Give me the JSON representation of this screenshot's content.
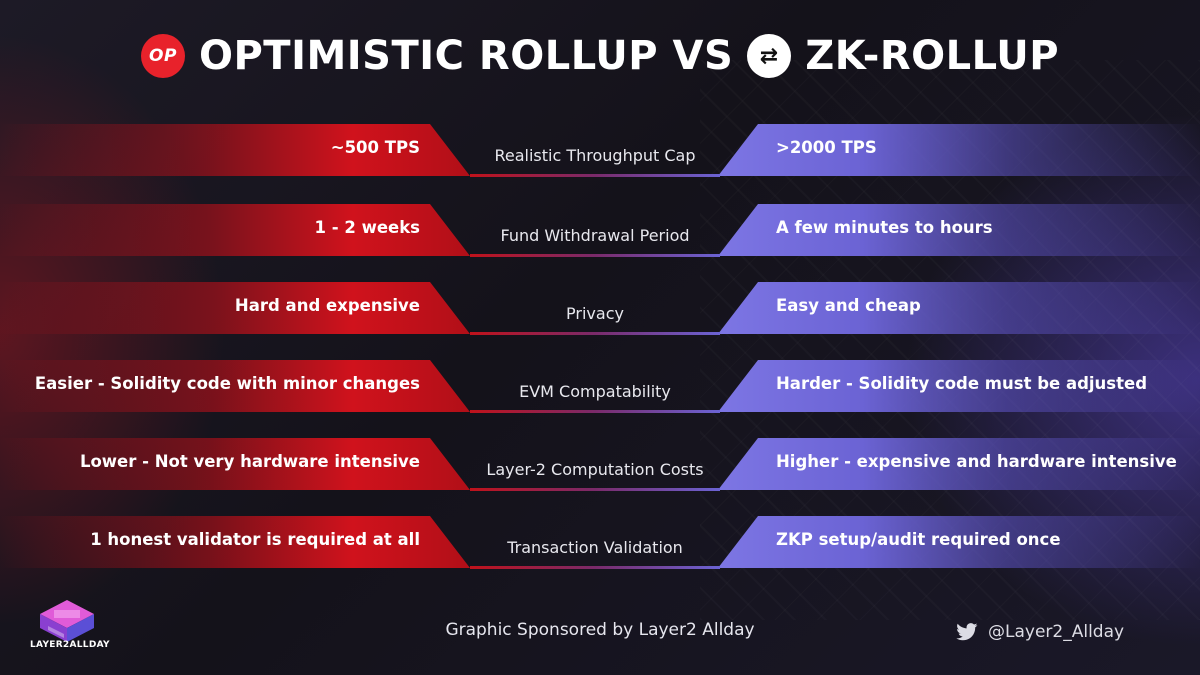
{
  "title": {
    "op_badge": "OP",
    "left": "OPTIMISTIC ROLLUP VS",
    "zk_badge": "⇄",
    "right": "ZK-ROLLUP"
  },
  "rows": [
    {
      "left": "~500 TPS",
      "center": "Realistic Throughput Cap",
      "right": ">2000 TPS"
    },
    {
      "left": "1 - 2 weeks",
      "center": "Fund Withdrawal Period",
      "right": "A few minutes to hours"
    },
    {
      "left": "Hard and expensive",
      "center": "Privacy",
      "right": "Easy and cheap"
    },
    {
      "left": "Easier - Solidity code with minor changes",
      "center": "EVM Compatability",
      "right": "Harder - Solidity code must be adjusted"
    },
    {
      "left": "Lower - Not very hardware intensive",
      "center": "Layer-2 Computation Costs",
      "right": "Higher - expensive and hardware intensive"
    },
    {
      "left": "1 honest validator is required at all",
      "center": "Transaction Validation",
      "right": "ZKP setup/audit required once"
    }
  ],
  "footer": {
    "logo_text": "LAYER2ALLDAY",
    "sponsor": "Graphic Sponsored by Layer2 Allday",
    "twitter_handle": "@Layer2_Allday"
  },
  "colors": {
    "op_red": "#d0121c",
    "zk_purple": "#6b63d4",
    "logo_pink": "#e05bd8"
  }
}
